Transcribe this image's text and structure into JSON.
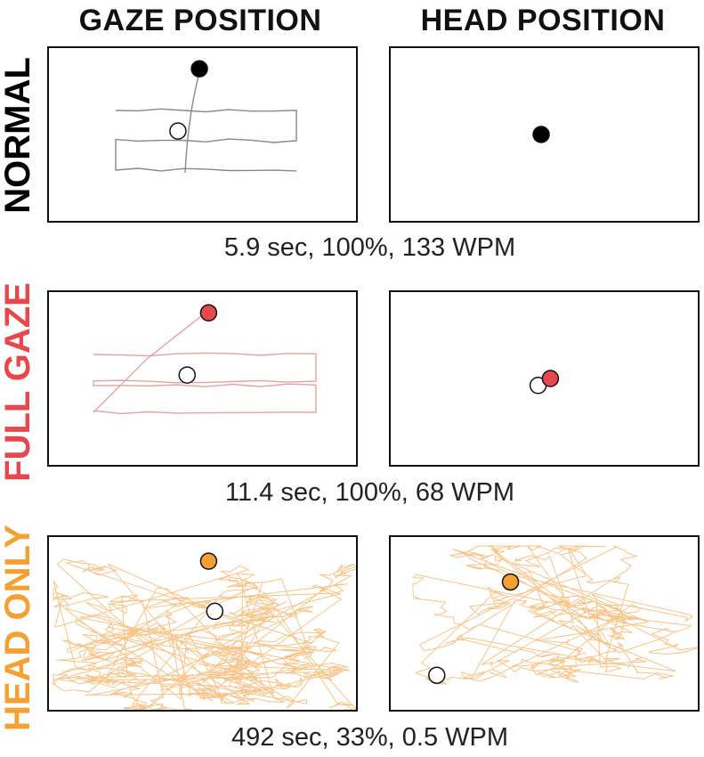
{
  "columns": {
    "gaze": "GAZE POSITION",
    "head": "HEAD POSITION"
  },
  "rows": [
    {
      "id": "normal",
      "label": "NORMAL",
      "color": "#000000",
      "caption": "5.9 sec, 100%, 133 WPM"
    },
    {
      "id": "full-gaze",
      "label": "FULL GAZE",
      "color": "#e8474c",
      "label_parts": [
        "FULL",
        "GAZE"
      ],
      "caption": "11.4 sec, 100%, 68 WPM"
    },
    {
      "id": "head-only",
      "label": "HEAD ONLY",
      "color": "#f5a030",
      "caption": "492 sec, 33%, 0.5 WPM"
    }
  ],
  "chart_data": [
    {
      "type": "line",
      "title": "",
      "panel": "normal-gaze",
      "series_color": "#000000",
      "trace_color": "#888888",
      "trace": "zigzag",
      "start_marker": [
        0.49,
        0.12
      ],
      "current_marker": [
        0.42,
        0.48
      ]
    },
    {
      "type": "scatter",
      "panel": "normal-head",
      "series_color": "#000000",
      "start_marker": [
        0.49,
        0.5
      ]
    },
    {
      "type": "line",
      "panel": "full-gaze-gaze",
      "series_color": "#e8474c",
      "trace_color": "#e8a0a4",
      "trace": "zigzag",
      "start_marker": [
        0.52,
        0.12
      ],
      "current_marker": [
        0.45,
        0.48
      ]
    },
    {
      "type": "scatter",
      "panel": "full-gaze-head",
      "series_color": "#e8474c",
      "start_marker": [
        0.52,
        0.5
      ],
      "current_marker": [
        0.48,
        0.54
      ]
    },
    {
      "type": "line",
      "panel": "head-only-gaze",
      "series_color": "#f5a030",
      "trace_color": "#f5b060",
      "trace": "scribble",
      "start_marker": [
        0.52,
        0.14
      ],
      "current_marker": [
        0.54,
        0.43
      ]
    },
    {
      "type": "line",
      "panel": "head-only-head",
      "series_color": "#f5a030",
      "trace_color": "#f5b060",
      "trace": "scribble",
      "start_marker": [
        0.39,
        0.26
      ],
      "current_marker": [
        0.15,
        0.8
      ]
    }
  ]
}
